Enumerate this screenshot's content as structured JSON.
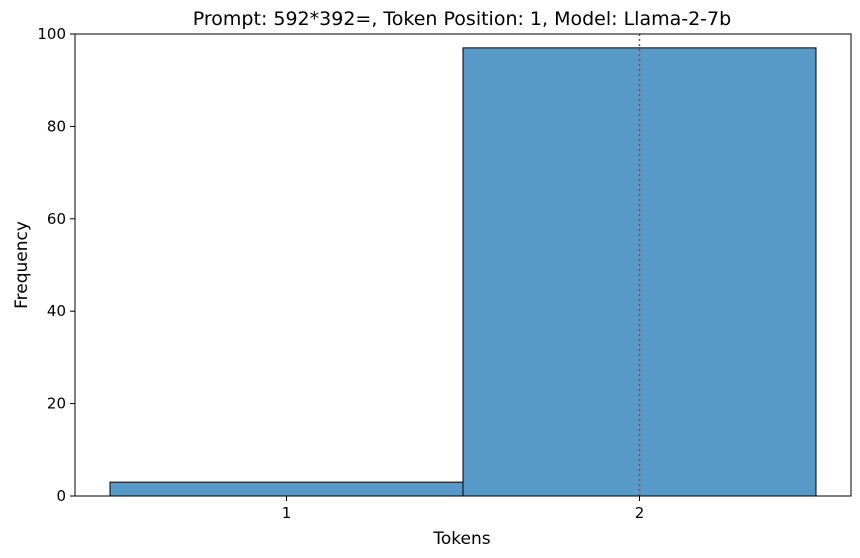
{
  "chart_data": {
    "type": "bar",
    "title": "Prompt: 592*392=, Token Position: 1, Model: Llama-2-7b",
    "xlabel": "Tokens",
    "ylabel": "Frequency",
    "categories": [
      "1",
      "2"
    ],
    "values": [
      3,
      97
    ],
    "ylim": [
      0,
      100
    ],
    "yticks": [
      "0",
      "20",
      "40",
      "60",
      "80",
      "100"
    ],
    "grid": false,
    "legend": "none",
    "bar_color": "#5799c7",
    "bar_edge_color": "#000000",
    "reference_line": {
      "x_category": "2",
      "style": "dotted",
      "color": "#d62728"
    }
  }
}
